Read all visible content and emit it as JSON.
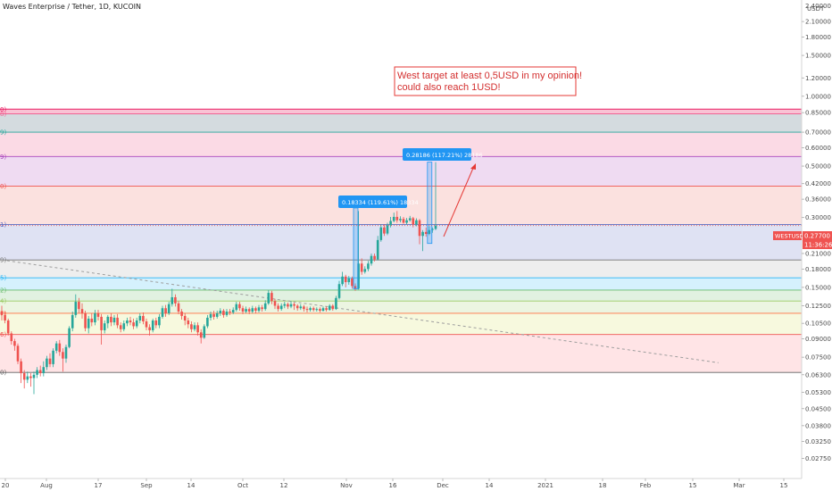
{
  "header": {
    "title": "Waves Enterprise / Tether, 1D, KUCOIN"
  },
  "price_axis": {
    "currency": "USDT",
    "top_label": "2.40000",
    "badge_price": "0.27700",
    "badge_time": "11:36:26",
    "badge_symbol": "WESTUSDT",
    "scale": "log"
  },
  "time_axis": {
    "labels": [
      "20",
      "Aug",
      "17",
      "Sep",
      "14",
      "Oct",
      "12",
      "Nov",
      "16",
      "Dec",
      "14",
      "2021",
      "18",
      "Feb",
      "15",
      "Mar",
      "15"
    ]
  },
  "annotations": {
    "note_lines": [
      "West target at least 0,5USD in my opinion!",
      "could also reach 1USD!"
    ],
    "measure1": "0.18334 (119.61%) 18334",
    "measure2": "0.28186 (117.21%) 28186"
  },
  "colors": {
    "up": "#26a69a",
    "down": "#ef5350",
    "note_border": "#e53935",
    "note_text": "#d32f2f",
    "measure_bg": "#2196f3",
    "badge_bg": "#ef5350",
    "arrow": "#e53935"
  },
  "chart_data": {
    "type": "candlestick",
    "title": "Waves Enterprise / Tether, 1D, KUCOIN",
    "y_scale": "log",
    "ylim": [
      0.0225,
      2.6
    ],
    "y_ticks": [
      "2.40000",
      "2.10000",
      "1.80000",
      "1.50000",
      "1.20000",
      "1.00000",
      "0.85000",
      "0.70000",
      "0.60000",
      "0.50000",
      "0.42000",
      "0.36000",
      "0.30000",
      "0.25000",
      "0.21000",
      "0.18000",
      "0.15000",
      "0.12500",
      "0.10500",
      "0.09000",
      "0.07500",
      "0.06300",
      "0.05300",
      "0.04500",
      "0.03800",
      "0.03250",
      "0.02750"
    ],
    "x_labels": [
      "20",
      "Aug",
      "17",
      "Sep",
      "14",
      "Oct",
      "12",
      "Nov",
      "16",
      "Dec",
      "14",
      "2021",
      "18",
      "Feb",
      "15",
      "Mar",
      "15"
    ],
    "last_price": 0.277,
    "fib_levels": [
      {
        "value": 0.88,
        "label": "0)"
      },
      {
        "value": 0.84,
        "label": "8)"
      },
      {
        "value": 0.7,
        "label": "9)"
      },
      {
        "value": 0.55,
        "label": "9)"
      },
      {
        "value": 0.41,
        "label": "0)"
      },
      {
        "value": 0.28,
        "label": "1)"
      },
      {
        "value": 0.197,
        "label": "9)"
      },
      {
        "value": 0.165,
        "label": "5)"
      },
      {
        "value": 0.146,
        "label": "2)"
      },
      {
        "value": 0.131,
        "label": "4)"
      },
      {
        "value": 0.116,
        "label": "7)"
      },
      {
        "value": 0.094,
        "label": "6)"
      },
      {
        "value": 0.0645,
        "label": "0)"
      }
    ],
    "bands": [
      {
        "top": 0.88,
        "bottom": 0.84,
        "color": "#f48fb1"
      },
      {
        "top": 0.84,
        "bottom": 0.7,
        "color": "#b0bec5"
      },
      {
        "top": 0.7,
        "bottom": 0.55,
        "color": "#f8bbd0"
      },
      {
        "top": 0.55,
        "bottom": 0.41,
        "color": "#e1bee7"
      },
      {
        "top": 0.41,
        "bottom": 0.28,
        "color": "#f8c9c4"
      },
      {
        "top": 0.28,
        "bottom": 0.197,
        "color": "#c5cae9"
      },
      {
        "top": 0.197,
        "bottom": 0.165,
        "color": "#e0e0e0"
      },
      {
        "top": 0.165,
        "bottom": 0.146,
        "color": "#b3e5fc"
      },
      {
        "top": 0.146,
        "bottom": 0.131,
        "color": "#c8e6c9"
      },
      {
        "top": 0.131,
        "bottom": 0.116,
        "color": "#dcedc8"
      },
      {
        "top": 0.116,
        "bottom": 0.094,
        "color": "#f0f4c3"
      },
      {
        "top": 0.094,
        "bottom": 0.0645,
        "color": "#ffcdd2"
      }
    ],
    "trendline": {
      "from": [
        0,
        0.197
      ],
      "to": [
        223,
        0.071
      ]
    },
    "candles": [
      [
        0.118,
        0.114,
        0.125,
        0.108
      ],
      [
        0.114,
        0.108,
        0.118,
        0.105
      ],
      [
        0.108,
        0.095,
        0.11,
        0.093
      ],
      [
        0.095,
        0.088,
        0.097,
        0.085
      ],
      [
        0.088,
        0.084,
        0.09,
        0.08
      ],
      [
        0.084,
        0.072,
        0.086,
        0.07
      ],
      [
        0.072,
        0.064,
        0.074,
        0.058
      ],
      [
        0.064,
        0.06,
        0.066,
        0.055
      ],
      [
        0.06,
        0.062,
        0.065,
        0.058
      ],
      [
        0.062,
        0.061,
        0.064,
        0.056
      ],
      [
        0.061,
        0.063,
        0.065,
        0.052
      ],
      [
        0.063,
        0.066,
        0.068,
        0.061
      ],
      [
        0.066,
        0.064,
        0.069,
        0.062
      ],
      [
        0.064,
        0.068,
        0.072,
        0.062
      ],
      [
        0.068,
        0.074,
        0.076,
        0.066
      ],
      [
        0.074,
        0.07,
        0.078,
        0.068
      ],
      [
        0.07,
        0.08,
        0.082,
        0.068
      ],
      [
        0.08,
        0.086,
        0.088,
        0.078
      ],
      [
        0.086,
        0.079,
        0.089,
        0.076
      ],
      [
        0.079,
        0.074,
        0.082,
        0.065
      ],
      [
        0.074,
        0.083,
        0.085,
        0.071
      ],
      [
        0.083,
        0.1,
        0.102,
        0.082
      ],
      [
        0.1,
        0.114,
        0.118,
        0.097
      ],
      [
        0.114,
        0.13,
        0.14,
        0.111
      ],
      [
        0.13,
        0.121,
        0.135,
        0.116
      ],
      [
        0.121,
        0.116,
        0.128,
        0.11
      ],
      [
        0.116,
        0.1,
        0.119,
        0.097
      ],
      [
        0.1,
        0.11,
        0.113,
        0.095
      ],
      [
        0.11,
        0.106,
        0.116,
        0.102
      ],
      [
        0.106,
        0.116,
        0.12,
        0.103
      ],
      [
        0.116,
        0.112,
        0.12,
        0.108
      ],
      [
        0.112,
        0.098,
        0.115,
        0.085
      ],
      [
        0.098,
        0.105,
        0.108,
        0.095
      ],
      [
        0.105,
        0.112,
        0.114,
        0.1
      ],
      [
        0.112,
        0.106,
        0.116,
        0.102
      ],
      [
        0.106,
        0.111,
        0.114,
        0.103
      ],
      [
        0.111,
        0.103,
        0.115,
        0.1
      ],
      [
        0.103,
        0.099,
        0.106,
        0.096
      ],
      [
        0.099,
        0.105,
        0.108,
        0.097
      ],
      [
        0.105,
        0.108,
        0.111,
        0.102
      ],
      [
        0.108,
        0.106,
        0.112,
        0.103
      ],
      [
        0.106,
        0.102,
        0.11,
        0.099
      ],
      [
        0.102,
        0.108,
        0.111,
        0.1
      ],
      [
        0.108,
        0.113,
        0.116,
        0.105
      ],
      [
        0.113,
        0.107,
        0.117,
        0.104
      ],
      [
        0.107,
        0.101,
        0.11,
        0.098
      ],
      [
        0.101,
        0.098,
        0.104,
        0.093
      ],
      [
        0.098,
        0.108,
        0.11,
        0.096
      ],
      [
        0.108,
        0.103,
        0.111,
        0.1
      ],
      [
        0.103,
        0.112,
        0.115,
        0.1
      ],
      [
        0.112,
        0.122,
        0.125,
        0.11
      ],
      [
        0.122,
        0.116,
        0.126,
        0.112
      ],
      [
        0.116,
        0.127,
        0.13,
        0.114
      ],
      [
        0.127,
        0.136,
        0.148,
        0.124
      ],
      [
        0.136,
        0.128,
        0.14,
        0.124
      ],
      [
        0.128,
        0.118,
        0.131,
        0.115
      ],
      [
        0.118,
        0.113,
        0.121,
        0.109
      ],
      [
        0.113,
        0.108,
        0.116,
        0.103
      ],
      [
        0.108,
        0.104,
        0.111,
        0.1
      ],
      [
        0.104,
        0.099,
        0.107,
        0.096
      ],
      [
        0.099,
        0.103,
        0.106,
        0.097
      ],
      [
        0.103,
        0.096,
        0.106,
        0.093
      ],
      [
        0.096,
        0.091,
        0.099,
        0.086
      ],
      [
        0.091,
        0.102,
        0.104,
        0.09
      ],
      [
        0.102,
        0.111,
        0.114,
        0.1
      ],
      [
        0.111,
        0.115,
        0.118,
        0.108
      ],
      [
        0.115,
        0.112,
        0.119,
        0.109
      ],
      [
        0.112,
        0.116,
        0.119,
        0.11
      ],
      [
        0.116,
        0.119,
        0.122,
        0.113
      ],
      [
        0.119,
        0.114,
        0.121,
        0.111
      ],
      [
        0.114,
        0.118,
        0.121,
        0.112
      ],
      [
        0.118,
        0.117,
        0.121,
        0.114
      ],
      [
        0.117,
        0.12,
        0.123,
        0.115
      ],
      [
        0.12,
        0.127,
        0.13,
        0.118
      ],
      [
        0.127,
        0.122,
        0.13,
        0.119
      ],
      [
        0.122,
        0.118,
        0.125,
        0.115
      ],
      [
        0.118,
        0.121,
        0.124,
        0.116
      ],
      [
        0.121,
        0.118,
        0.123,
        0.115
      ],
      [
        0.118,
        0.122,
        0.125,
        0.116
      ],
      [
        0.122,
        0.119,
        0.124,
        0.116
      ],
      [
        0.119,
        0.123,
        0.126,
        0.117
      ],
      [
        0.123,
        0.121,
        0.126,
        0.118
      ],
      [
        0.121,
        0.128,
        0.132,
        0.119
      ],
      [
        0.128,
        0.142,
        0.146,
        0.126
      ],
      [
        0.142,
        0.131,
        0.145,
        0.127
      ],
      [
        0.131,
        0.125,
        0.134,
        0.121
      ],
      [
        0.125,
        0.121,
        0.128,
        0.118
      ],
      [
        0.121,
        0.125,
        0.128,
        0.119
      ],
      [
        0.125,
        0.127,
        0.13,
        0.122
      ],
      [
        0.127,
        0.124,
        0.129,
        0.121
      ],
      [
        0.124,
        0.127,
        0.131,
        0.122
      ],
      [
        0.127,
        0.125,
        0.129,
        0.12
      ],
      [
        0.125,
        0.122,
        0.127,
        0.119
      ],
      [
        0.122,
        0.124,
        0.127,
        0.12
      ],
      [
        0.124,
        0.121,
        0.126,
        0.118
      ],
      [
        0.121,
        0.12,
        0.124,
        0.117
      ],
      [
        0.12,
        0.122,
        0.124,
        0.118
      ],
      [
        0.122,
        0.12,
        0.124,
        0.118
      ],
      [
        0.12,
        0.121,
        0.123,
        0.118
      ],
      [
        0.121,
        0.119,
        0.123,
        0.117
      ],
      [
        0.119,
        0.122,
        0.124,
        0.118
      ],
      [
        0.122,
        0.12,
        0.124,
        0.118
      ],
      [
        0.12,
        0.125,
        0.127,
        0.119
      ],
      [
        0.125,
        0.121,
        0.127,
        0.119
      ],
      [
        0.121,
        0.135,
        0.138,
        0.12
      ],
      [
        0.135,
        0.155,
        0.16,
        0.133
      ],
      [
        0.155,
        0.167,
        0.175,
        0.152
      ],
      [
        0.167,
        0.158,
        0.17,
        0.15
      ],
      [
        0.158,
        0.164,
        0.168,
        0.154
      ],
      [
        0.164,
        0.152,
        0.167,
        0.148
      ],
      [
        0.152,
        0.148,
        0.156,
        0.145
      ],
      [
        0.148,
        0.19,
        0.32,
        0.147
      ],
      [
        0.19,
        0.175,
        0.2,
        0.17
      ],
      [
        0.175,
        0.18,
        0.185,
        0.172
      ],
      [
        0.18,
        0.19,
        0.195,
        0.176
      ],
      [
        0.19,
        0.205,
        0.21,
        0.186
      ],
      [
        0.205,
        0.198,
        0.21,
        0.194
      ],
      [
        0.198,
        0.24,
        0.25,
        0.196
      ],
      [
        0.24,
        0.272,
        0.28,
        0.236
      ],
      [
        0.272,
        0.256,
        0.28,
        0.25
      ],
      [
        0.256,
        0.278,
        0.285,
        0.252
      ],
      [
        0.278,
        0.29,
        0.302,
        0.272
      ],
      [
        0.29,
        0.302,
        0.315,
        0.286
      ],
      [
        0.302,
        0.292,
        0.32,
        0.285
      ],
      [
        0.292,
        0.296,
        0.304,
        0.286
      ],
      [
        0.296,
        0.285,
        0.302,
        0.282
      ],
      [
        0.285,
        0.292,
        0.299,
        0.28
      ],
      [
        0.292,
        0.298,
        0.305,
        0.288
      ],
      [
        0.298,
        0.28,
        0.302,
        0.272
      ],
      [
        0.28,
        0.292,
        0.298,
        0.275
      ],
      [
        0.292,
        0.25,
        0.296,
        0.23
      ],
      [
        0.25,
        0.26,
        0.265,
        0.215
      ],
      [
        0.26,
        0.255,
        0.272,
        0.248
      ],
      [
        0.255,
        0.265,
        0.275,
        0.252
      ],
      [
        0.265,
        0.268,
        0.272,
        0.258
      ],
      [
        0.268,
        0.277,
        0.52,
        0.265
      ]
    ]
  }
}
